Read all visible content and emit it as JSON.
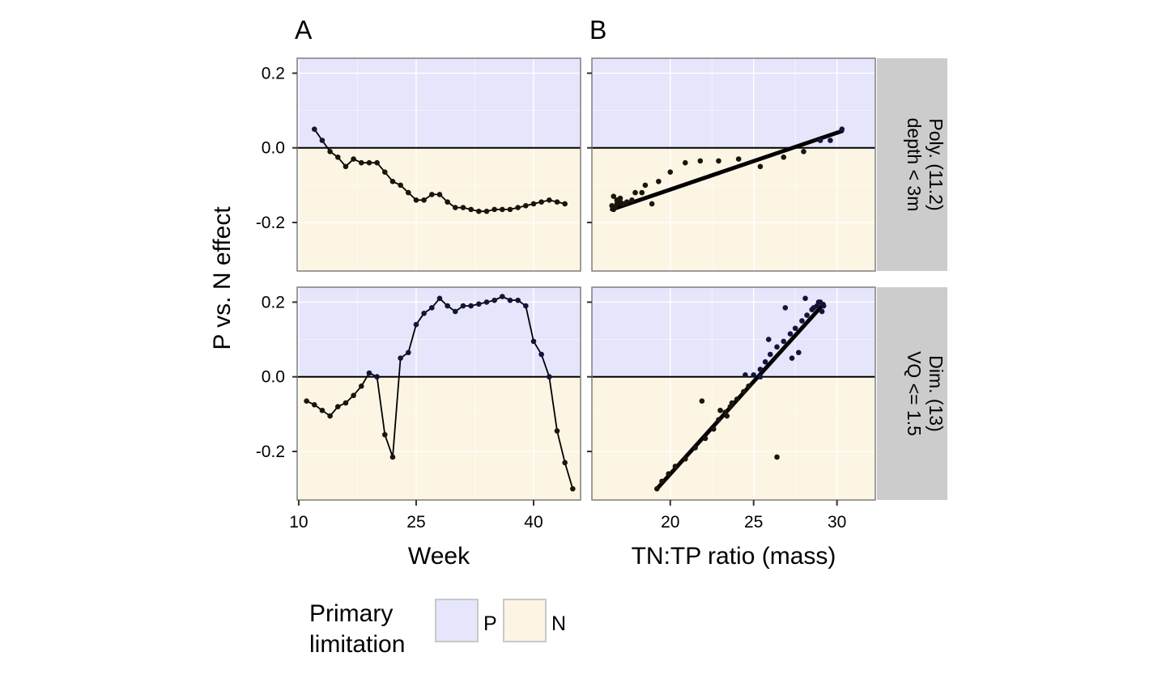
{
  "chart_data": {
    "type": "line",
    "panel_labels": [
      "A",
      "B"
    ],
    "ylabel": "P vs. N effect",
    "columns": [
      {
        "label": "A",
        "xlabel": "Week",
        "xlim": [
          9.8,
          46
        ],
        "xticks": [
          10,
          25,
          40
        ],
        "mark": "line+points"
      },
      {
        "label": "B",
        "xlabel": "TN:TP ratio (mass)",
        "xlim": [
          15.3,
          32.3
        ],
        "xticks": [
          20,
          25,
          30
        ],
        "mark": "points+fit"
      }
    ],
    "ylim": [
      -0.33,
      0.24
    ],
    "yticks": [
      -0.2,
      0.0,
      0.2
    ],
    "ytick_labels": [
      "-0.2",
      "0.0",
      "0.2"
    ],
    "reference_line": 0,
    "grid": true,
    "rows": [
      {
        "strip_lines": [
          "Poly. (11.2)",
          "depth < 3m"
        ],
        "week_series": {
          "x": [
            12,
            13,
            14,
            15,
            16,
            17,
            18,
            19,
            20,
            21,
            22,
            23,
            24,
            25,
            26,
            27,
            28,
            29,
            30,
            31,
            32,
            33,
            34,
            35,
            36,
            37,
            38,
            39,
            40,
            41,
            42,
            43,
            44
          ],
          "y": [
            0.05,
            0.02,
            -0.01,
            -0.025,
            -0.05,
            -0.03,
            -0.04,
            -0.04,
            -0.04,
            -0.065,
            -0.09,
            -0.1,
            -0.12,
            -0.14,
            -0.14,
            -0.125,
            -0.125,
            -0.145,
            -0.16,
            -0.16,
            -0.165,
            -0.17,
            -0.17,
            -0.165,
            -0.165,
            -0.165,
            -0.16,
            -0.155,
            -0.15,
            -0.145,
            -0.14,
            -0.145,
            -0.15
          ]
        },
        "ratio_points": {
          "x": [
            16.5,
            16.6,
            16.7,
            16.8,
            16.9,
            17.0,
            17.1,
            16.6,
            16.8,
            17.0,
            17.2,
            17.4,
            17.7,
            17.9,
            18.3,
            18.5,
            18.9,
            19.3,
            20.0,
            20.9,
            21.8,
            22.9,
            24.1,
            25.4,
            26.8,
            28.0,
            29.0,
            29.6,
            30.3
          ],
          "y": [
            -0.155,
            -0.165,
            -0.16,
            -0.15,
            -0.14,
            -0.145,
            -0.15,
            -0.13,
            -0.14,
            -0.135,
            -0.15,
            -0.145,
            -0.14,
            -0.12,
            -0.12,
            -0.1,
            -0.15,
            -0.09,
            -0.065,
            -0.04,
            -0.035,
            -0.035,
            -0.03,
            -0.05,
            -0.025,
            -0.01,
            0.02,
            0.02,
            0.05
          ]
        },
        "ratio_fit": {
          "x": [
            16.5,
            30.3
          ],
          "y": [
            -0.165,
            0.045
          ]
        }
      },
      {
        "strip_lines": [
          "Dim. (13)",
          "VQ <= 1.5"
        ],
        "week_series": {
          "x": [
            11,
            12,
            13,
            14,
            15,
            16,
            17,
            18,
            19,
            20,
            21,
            22,
            23,
            24,
            25,
            26,
            27,
            28,
            29,
            30,
            31,
            32,
            33,
            34,
            35,
            36,
            37,
            38,
            39,
            40,
            41,
            42,
            43,
            44,
            45
          ],
          "y": [
            -0.065,
            -0.075,
            -0.09,
            -0.105,
            -0.08,
            -0.07,
            -0.05,
            -0.025,
            0.01,
            0.0,
            -0.155,
            -0.215,
            0.05,
            0.065,
            0.14,
            0.17,
            0.185,
            0.21,
            0.19,
            0.175,
            0.19,
            0.19,
            0.195,
            0.2,
            0.205,
            0.215,
            0.205,
            0.205,
            0.19,
            0.095,
            0.06,
            0.0,
            -0.145,
            -0.23,
            -0.3
          ]
        },
        "ratio_points": {
          "x": [
            19.2,
            19.5,
            19.9,
            20.3,
            20.9,
            21.5,
            22.1,
            22.6,
            22.9,
            23.3,
            23.6,
            24.0,
            24.4,
            24.7,
            25.0,
            25.4,
            25.7,
            26.0,
            26.4,
            26.8,
            27.2,
            27.5,
            27.9,
            28.2,
            28.5,
            28.8,
            29.0,
            29.2,
            21.9,
            23.0,
            23.4,
            23.7,
            24.5,
            25.4,
            25.9,
            26.4,
            26.9,
            27.3,
            27.7,
            28.1,
            28.6,
            28.9,
            29.1
          ],
          "y": [
            -0.3,
            -0.28,
            -0.26,
            -0.24,
            -0.22,
            -0.19,
            -0.165,
            -0.14,
            -0.115,
            -0.095,
            -0.08,
            -0.06,
            -0.04,
            -0.025,
            0.005,
            0.02,
            0.04,
            0.06,
            0.08,
            0.095,
            0.115,
            0.13,
            0.15,
            0.165,
            0.18,
            0.19,
            0.2,
            0.19,
            -0.065,
            -0.09,
            -0.105,
            -0.07,
            0.005,
            0.0,
            0.1,
            -0.215,
            0.185,
            0.05,
            0.065,
            0.21,
            0.185,
            0.2,
            0.175
          ]
        },
        "ratio_fit": {
          "x": [
            19.2,
            29.2
          ],
          "y": [
            -0.3,
            0.195
          ]
        }
      }
    ],
    "legend": {
      "title_lines": [
        "Primary",
        "limitation"
      ],
      "items": [
        {
          "label": "P",
          "color": "#e5e5fb"
        },
        {
          "label": "N",
          "color": "#fcf5e3"
        }
      ],
      "placement": "bottom"
    },
    "colors": {
      "strip_fill": "#cccccc",
      "panel_border": "#7f7f7f",
      "grid": "#ffffff",
      "line": "#000000",
      "point_upper": "#14143a",
      "point_lower": "#1a150a"
    }
  }
}
